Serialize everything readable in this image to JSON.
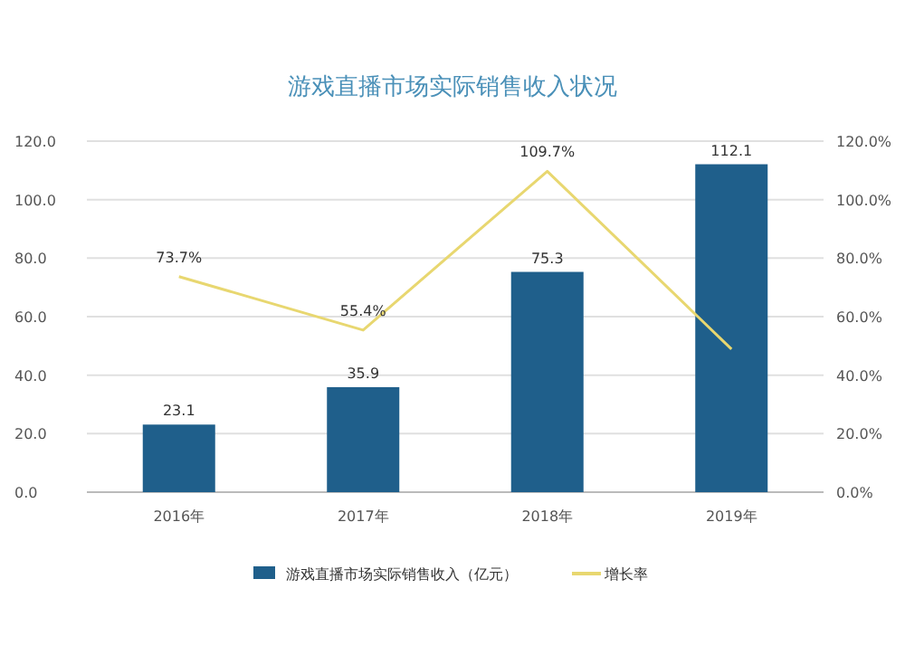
{
  "chart_data": {
    "type": "bar",
    "title": "游戏直播市场实际销售收入状况",
    "categories": [
      "2016年",
      "2017年",
      "2018年",
      "2019年"
    ],
    "series": [
      {
        "name": "游戏直播市场实际销售收入（亿元）",
        "color": "#1f5f8b",
        "values": [
          23.1,
          35.9,
          75.3,
          112.1
        ],
        "value_labels": [
          "23.1",
          "35.9",
          "75.3",
          "112.1"
        ]
      },
      {
        "name": "增长率",
        "type": "line",
        "axis": "y2",
        "color": "#e8d770",
        "values": [
          73.7,
          55.4,
          109.7,
          48.9
        ],
        "value_labels": [
          "73.7%",
          "55.4%",
          "109.7%",
          null
        ]
      }
    ],
    "ylim": [
      0,
      120
    ],
    "yticks": [
      {
        "value": 0,
        "label": "0.0"
      },
      {
        "value": 20,
        "label": "20.0"
      },
      {
        "value": 40,
        "label": "40.0"
      },
      {
        "value": 60,
        "label": "60.0"
      },
      {
        "value": 80,
        "label": "80.0"
      },
      {
        "value": 100,
        "label": "100.0"
      },
      {
        "value": 120,
        "label": "120.0"
      }
    ],
    "y2lim": [
      0,
      120
    ],
    "y2ticks": [
      {
        "value": 0,
        "label": "0.0%"
      },
      {
        "value": 20,
        "label": "20.0%"
      },
      {
        "value": 40,
        "label": "40.0%"
      },
      {
        "value": 60,
        "label": "60.0%"
      },
      {
        "value": 80,
        "label": "80.0%"
      },
      {
        "value": 100,
        "label": "100.0%"
      },
      {
        "value": 120,
        "label": "120.0%"
      }
    ],
    "grid": "y",
    "legend": "bottom",
    "marker": "none"
  }
}
